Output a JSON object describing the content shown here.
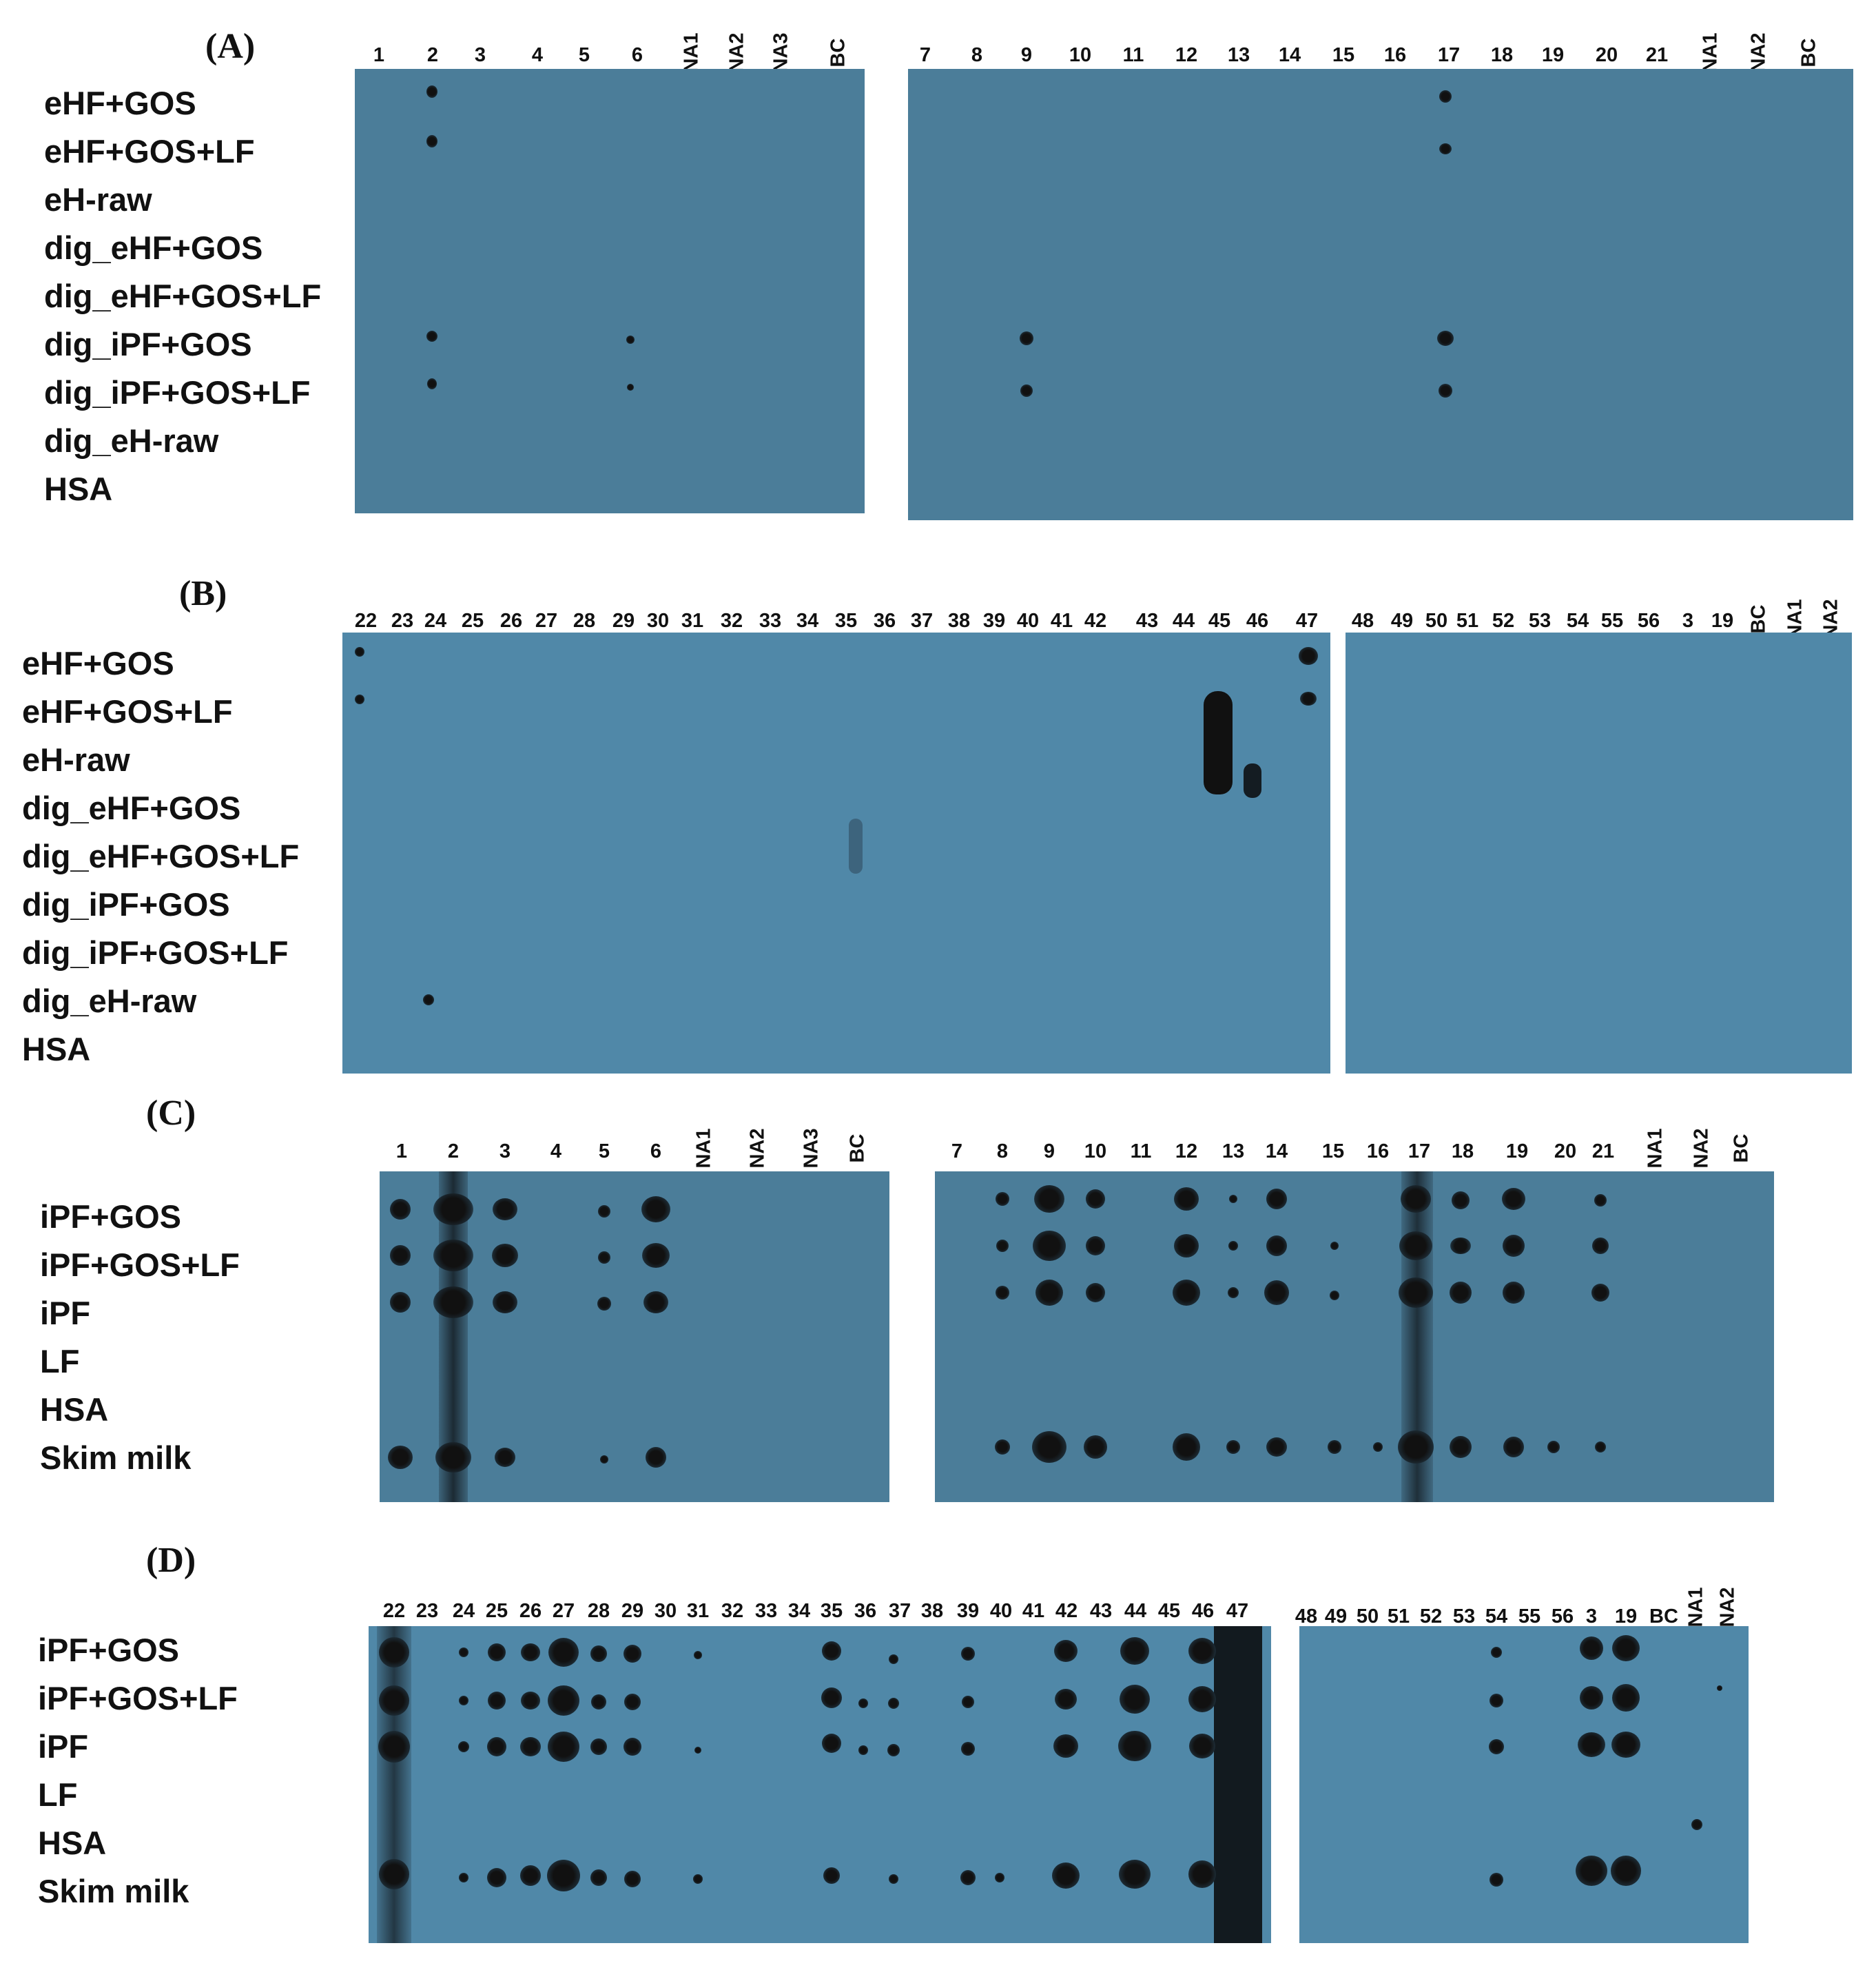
{
  "panels": {
    "A": {
      "title": "(A)",
      "rows": [
        "eHF+GOS",
        "eHF+GOS+LF",
        "eH-raw",
        "dig_eHF+GOS",
        "dig_eHF+GOS+LF",
        "dig_iPF+GOS",
        "dig_iPF+GOS+LF",
        "dig_eH-raw",
        "HSA"
      ],
      "left_cols": [
        "1",
        "2",
        "3",
        "4",
        "5",
        "6",
        "NA1",
        "NA2",
        "NA3",
        "BC"
      ],
      "right_cols": [
        "7",
        "8",
        "9",
        "10",
        "11",
        "12",
        "13",
        "14",
        "15",
        "16",
        "17",
        "18",
        "19",
        "20",
        "21",
        "NA1",
        "NA2",
        "BC"
      ]
    },
    "B": {
      "title": "(B)",
      "rows": [
        "eHF+GOS",
        "eHF+GOS+LF",
        "eH-raw",
        "dig_eHF+GOS",
        "dig_eHF+GOS+LF",
        "dig_iPF+GOS",
        "dig_iPF+GOS+LF",
        "dig_eH-raw",
        "HSA"
      ],
      "left_cols": [
        "22",
        "23",
        "24",
        "25",
        "26",
        "27",
        "28",
        "29",
        "30",
        "31",
        "32",
        "33",
        "34",
        "35",
        "36",
        "37",
        "38",
        "39",
        "40",
        "41",
        "42",
        "43",
        "44",
        "45",
        "46",
        "47"
      ],
      "right_cols": [
        "48",
        "49",
        "50",
        "51",
        "52",
        "53",
        "54",
        "55",
        "56",
        "3",
        "19",
        "BC",
        "NA1",
        "NA2"
      ]
    },
    "C": {
      "title": "(C)",
      "rows": [
        "iPF+GOS",
        "iPF+GOS+LF",
        "iPF",
        "LF",
        "HSA",
        "Skim milk"
      ],
      "left_cols": [
        "1",
        "2",
        "3",
        "4",
        "5",
        "6",
        "NA1",
        "NA2",
        "NA3",
        "BC"
      ],
      "right_cols": [
        "7",
        "8",
        "9",
        "10",
        "11",
        "12",
        "13",
        "14",
        "15",
        "16",
        "17",
        "18",
        "19",
        "20",
        "21",
        "NA1",
        "NA2",
        "BC"
      ]
    },
    "D": {
      "title": "(D)",
      "rows": [
        "iPF+GOS",
        "iPF+GOS+LF",
        "iPF",
        "LF",
        "HSA",
        "Skim milk"
      ],
      "left_cols": [
        "22",
        "23",
        "24",
        "25",
        "26",
        "27",
        "28",
        "29",
        "30",
        "31",
        "32",
        "33",
        "34",
        "35",
        "36",
        "37",
        "38",
        "39",
        "40",
        "41",
        "42",
        "43",
        "44",
        "45",
        "46",
        "47"
      ],
      "right_cols": [
        "48",
        "49",
        "50",
        "51",
        "52",
        "53",
        "54",
        "55",
        "56",
        "3",
        "19",
        "BC",
        "NA1",
        "NA2"
      ]
    }
  }
}
